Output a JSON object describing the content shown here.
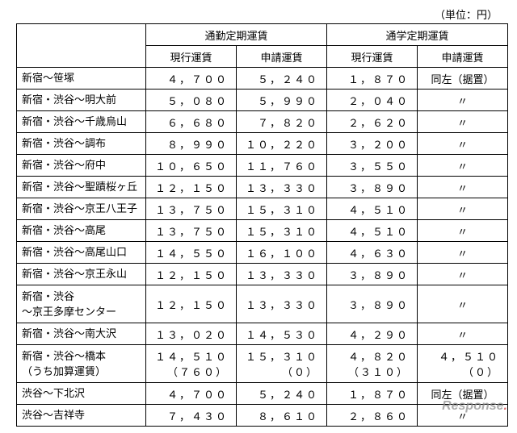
{
  "unit_label": "（単位：円）",
  "headers": {
    "commuter": "通勤定期運賃",
    "student": "通学定期運賃",
    "current": "現行運賃",
    "applied": "申請運賃"
  },
  "ditto": "〃",
  "same_left": "同左（据置）",
  "rows": [
    {
      "route": "新宿～笹塚",
      "c_cur": "４，７００",
      "c_app": "５，２４０",
      "s_cur": "１，８７０",
      "s_app_key": "same"
    },
    {
      "route": "新宿・渋谷～明大前",
      "c_cur": "５，０８０",
      "c_app": "５，９９０",
      "s_cur": "２，０４０",
      "s_app_key": "ditto"
    },
    {
      "route": "新宿・渋谷～千歳烏山",
      "c_cur": "６，６８０",
      "c_app": "７，８２０",
      "s_cur": "２，６２０",
      "s_app_key": "ditto"
    },
    {
      "route": "新宿・渋谷～調布",
      "c_cur": "８，９９０",
      "c_app": "１０，２２０",
      "s_cur": "３，２００",
      "s_app_key": "ditto"
    },
    {
      "route": "新宿・渋谷～府中",
      "c_cur": "１０，６５０",
      "c_app": "１１，７６０",
      "s_cur": "３，５５０",
      "s_app_key": "ditto"
    },
    {
      "route": "新宿・渋谷～聖蹟桜ヶ丘",
      "c_cur": "１２，１５０",
      "c_app": "１３，３３０",
      "s_cur": "３，８９０",
      "s_app_key": "ditto"
    },
    {
      "route": "新宿・渋谷～京王八王子",
      "c_cur": "１３，７５０",
      "c_app": "１５，３１０",
      "s_cur": "４，５１０",
      "s_app_key": "ditto"
    },
    {
      "route": "新宿・渋谷～高尾",
      "c_cur": "１３，７５０",
      "c_app": "１５，３１０",
      "s_cur": "４，５１０",
      "s_app_key": "ditto"
    },
    {
      "route": "新宿・渋谷～高尾山口",
      "c_cur": "１４，５５０",
      "c_app": "１６，１００",
      "s_cur": "４，６３０",
      "s_app_key": "ditto"
    },
    {
      "route": "新宿・渋谷～京王永山",
      "c_cur": "１２，１５０",
      "c_app": "１３，３３０",
      "s_cur": "３，８９０",
      "s_app_key": "ditto"
    },
    {
      "route": "新宿・渋谷\n～京王多摩センター",
      "tall": true,
      "c_cur": "１２，１５０",
      "c_app": "１３，３３０",
      "s_cur": "３，８９０",
      "s_app_key": "ditto"
    },
    {
      "route": "新宿・渋谷～南大沢",
      "c_cur": "１３，０２０",
      "c_app": "１４，５３０",
      "s_cur": "４，２９０",
      "s_app_key": "ditto"
    },
    {
      "route": "新宿・渋谷～橋本\n（うち加算運賃）",
      "tall": true,
      "c_cur": "１４，５１０\n（７６０）",
      "c_app": "１５，３１０\n（０）",
      "s_cur": "４，８２０\n（３１０）",
      "s_app": "４，５１０\n（０）"
    },
    {
      "route": "渋谷～下北沢",
      "c_cur": "４，７００",
      "c_app": "５，２４０",
      "s_cur": "１，８７０",
      "s_app_key": "same"
    },
    {
      "route": "渋谷～吉祥寺",
      "c_cur": "７，４３０",
      "c_app": "８，６１０",
      "s_cur": "２，８６０",
      "s_app_key": "ditto"
    }
  ],
  "watermark": {
    "text": "Response",
    "dot": "."
  }
}
